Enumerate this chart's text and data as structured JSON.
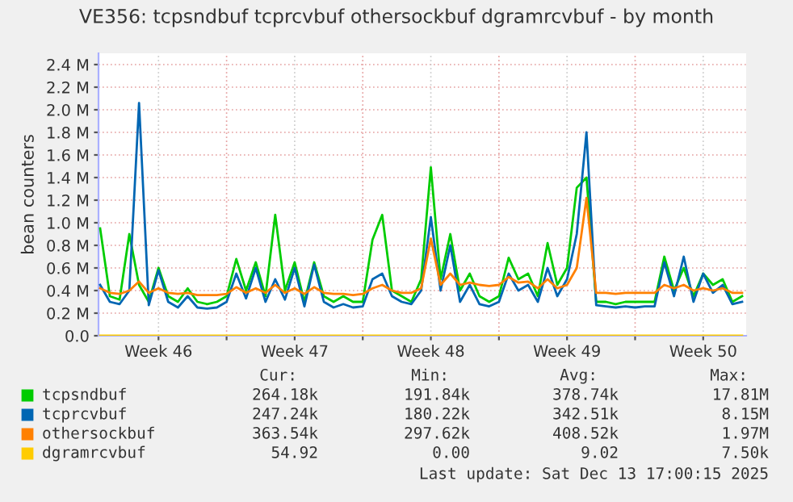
{
  "chart_data": {
    "type": "line",
    "title": "VE356: tcpsndbuf tcprcvbuf othersockbuf dgramrcvbuf - by month",
    "ylabel": "bean counters",
    "x": [
      "2025-11-10T12:00",
      "2025-11-11T00:00",
      "2025-11-11T12:00",
      "2025-11-12T00:00",
      "2025-11-12T12:00",
      "2025-11-13T00:00",
      "2025-11-13T12:00",
      "2025-11-14T00:00",
      "2025-11-14T12:00",
      "2025-11-15T00:00",
      "2025-11-15T12:00",
      "2025-11-16T00:00",
      "2025-11-16T12:00",
      "2025-11-17T00:00",
      "2025-11-17T12:00",
      "2025-11-18T00:00",
      "2025-11-18T12:00",
      "2025-11-19T00:00",
      "2025-11-19T12:00",
      "2025-11-20T00:00",
      "2025-11-20T12:00",
      "2025-11-21T00:00",
      "2025-11-21T12:00",
      "2025-11-22T00:00",
      "2025-11-22T12:00",
      "2025-11-23T00:00",
      "2025-11-23T12:00",
      "2025-11-24T00:00",
      "2025-11-24T12:00",
      "2025-11-25T00:00",
      "2025-11-25T12:00",
      "2025-11-26T00:00",
      "2025-11-26T12:00",
      "2025-11-27T00:00",
      "2025-11-27T12:00",
      "2025-11-28T00:00",
      "2025-11-28T12:00",
      "2025-11-29T00:00",
      "2025-11-29T12:00",
      "2025-11-30T00:00",
      "2025-11-30T12:00",
      "2025-12-01T00:00",
      "2025-12-01T12:00",
      "2025-12-02T00:00",
      "2025-12-02T12:00",
      "2025-12-03T00:00",
      "2025-12-03T12:00",
      "2025-12-04T00:00",
      "2025-12-04T12:00",
      "2025-12-05T00:00",
      "2025-12-05T12:00",
      "2025-12-06T00:00",
      "2025-12-06T12:00",
      "2025-12-07T00:00",
      "2025-12-07T12:00",
      "2025-12-08T00:00",
      "2025-12-08T12:00",
      "2025-12-09T00:00",
      "2025-12-09T12:00",
      "2025-12-10T00:00",
      "2025-12-10T12:00",
      "2025-12-11T00:00",
      "2025-12-11T12:00",
      "2025-12-12T00:00",
      "2025-12-12T12:00",
      "2025-12-13T00:00",
      "2025-12-13T12:00"
    ],
    "series": [
      {
        "name": "tcpsndbuf",
        "color": "#00cc00",
        "values": [
          950000,
          350000,
          320000,
          900000,
          450000,
          300000,
          600000,
          350000,
          300000,
          420000,
          300000,
          280000,
          300000,
          350000,
          680000,
          400000,
          650000,
          350000,
          1070000,
          400000,
          650000,
          300000,
          650000,
          350000,
          300000,
          350000,
          300000,
          300000,
          850000,
          1070000,
          400000,
          350000,
          300000,
          500000,
          1490000,
          500000,
          900000,
          400000,
          550000,
          350000,
          300000,
          350000,
          690000,
          500000,
          550000,
          350000,
          820000,
          450000,
          600000,
          1310000,
          1400000,
          300000,
          300000,
          280000,
          300000,
          300000,
          300000,
          300000,
          700000,
          400000,
          600000,
          350000,
          550000,
          450000,
          500000,
          300000,
          350000
        ]
      },
      {
        "name": "tcprcvbuf",
        "color": "#0066b3",
        "values": [
          450000,
          300000,
          280000,
          400000,
          2060000,
          270000,
          580000,
          300000,
          250000,
          350000,
          250000,
          240000,
          250000,
          300000,
          550000,
          330000,
          600000,
          300000,
          500000,
          320000,
          600000,
          260000,
          630000,
          300000,
          250000,
          280000,
          250000,
          260000,
          500000,
          550000,
          350000,
          300000,
          280000,
          400000,
          1050000,
          400000,
          800000,
          300000,
          450000,
          280000,
          260000,
          300000,
          550000,
          400000,
          450000,
          300000,
          600000,
          350000,
          500000,
          900000,
          1800000,
          270000,
          260000,
          250000,
          260000,
          250000,
          260000,
          260000,
          650000,
          350000,
          700000,
          300000,
          550000,
          380000,
          450000,
          280000,
          300000
        ]
      },
      {
        "name": "othersockbuf",
        "color": "#ff8000",
        "values": [
          420000,
          380000,
          370000,
          400000,
          480000,
          380000,
          420000,
          380000,
          370000,
          380000,
          360000,
          360000,
          360000,
          370000,
          430000,
          380000,
          420000,
          380000,
          450000,
          380000,
          420000,
          370000,
          430000,
          380000,
          370000,
          370000,
          360000,
          370000,
          420000,
          450000,
          400000,
          380000,
          380000,
          420000,
          860000,
          450000,
          550000,
          450000,
          470000,
          450000,
          440000,
          450000,
          520000,
          470000,
          480000,
          420000,
          500000,
          420000,
          450000,
          600000,
          1220000,
          380000,
          380000,
          370000,
          380000,
          380000,
          380000,
          380000,
          450000,
          420000,
          450000,
          400000,
          420000,
          400000,
          420000,
          380000,
          380000
        ]
      },
      {
        "name": "dgramrcvbuf",
        "color": "#ffcc00",
        "values": [
          0,
          0,
          0,
          0,
          0,
          0,
          0,
          0,
          0,
          0,
          0,
          0,
          0,
          0,
          0,
          0,
          0,
          0,
          0,
          0,
          0,
          0,
          0,
          0,
          0,
          0,
          0,
          0,
          0,
          0,
          0,
          0,
          0,
          0,
          0,
          0,
          0,
          0,
          0,
          0,
          0,
          0,
          0,
          0,
          0,
          0,
          0,
          0,
          0,
          0,
          0,
          0,
          0,
          0,
          0,
          0,
          0,
          0,
          0,
          0,
          0,
          0,
          0,
          0,
          0,
          0,
          0
        ]
      }
    ],
    "xlim": [
      "2025-11-10T10:00",
      "2025-12-13T17:00"
    ],
    "xticks": [
      {
        "value": "2025-11-13T12:00",
        "label": "Week 46"
      },
      {
        "value": "2025-11-17T00:00",
        "label": null
      },
      {
        "value": "2025-11-20T12:00",
        "label": "Week 47"
      },
      {
        "value": "2025-11-24T00:00",
        "label": null
      },
      {
        "value": "2025-11-27T12:00",
        "label": "Week 48"
      },
      {
        "value": "2025-12-01T00:00",
        "label": null
      },
      {
        "value": "2025-12-04T12:00",
        "label": "Week 49"
      },
      {
        "value": "2025-12-08T00:00",
        "label": null
      },
      {
        "value": "2025-12-11T12:00",
        "label": "Week 50"
      }
    ],
    "ylim": [
      0,
      2500000
    ],
    "yticks": [
      {
        "value": 0,
        "label": "0.0"
      },
      {
        "value": 200000,
        "label": "0.2 M"
      },
      {
        "value": 400000,
        "label": "0.4 M"
      },
      {
        "value": 600000,
        "label": "0.6 M"
      },
      {
        "value": 800000,
        "label": "0.8 M"
      },
      {
        "value": 1000000,
        "label": "1.0 M"
      },
      {
        "value": 1200000,
        "label": "1.2 M"
      },
      {
        "value": 1400000,
        "label": "1.4 M"
      },
      {
        "value": 1600000,
        "label": "1.6 M"
      },
      {
        "value": 1800000,
        "label": "1.8 M"
      },
      {
        "value": 2000000,
        "label": "2.0 M"
      },
      {
        "value": 2200000,
        "label": "2.2 M"
      },
      {
        "value": 2400000,
        "label": "2.4 M"
      }
    ],
    "grid": true,
    "legend": "bottom",
    "line_style": "solid",
    "annotations": [
      "Cur:",
      "Min:",
      "Avg:",
      "Max:",
      "264.18k",
      "191.84k",
      "378.74k",
      "17.81M",
      "247.24k",
      "180.22k",
      "342.51k",
      "8.15M",
      "363.54k",
      "297.62k",
      "408.52k",
      "1.97M",
      "54.92",
      "0.00",
      "9.02",
      "7.50k",
      "Last update: Sat Dec 13 17:00:15 2025"
    ]
  }
}
